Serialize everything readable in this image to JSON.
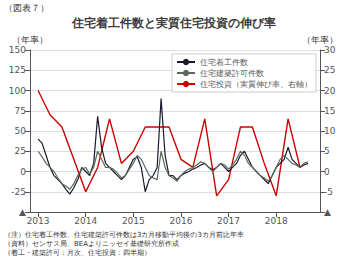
{
  "chart_data": {
    "type": "line",
    "title": "住宅着工件数と実質住宅投資の伸び率",
    "annotations": [
      "（図表７）",
      "（注）住宅着工件数、住宅建築許可件数は3カ月移動平均後の3カ月前比年率",
      "（資料）センサス局、BEAよりニッセイ基礎研究所作成",
      "（着工・建築許可：月次、住宅投資：四半期）"
    ],
    "ylabel": "（年率）",
    "y2label": "（年率）",
    "xlim": [
      2012.83,
      2018.92
    ],
    "xticks": [
      2013,
      2014,
      2015,
      2016,
      2017,
      2018
    ],
    "ylim": [
      -50,
      150
    ],
    "yticks": [
      {
        "value": -50,
        "label": "▲"
      },
      -25,
      0,
      25,
      50,
      75,
      100,
      125,
      150
    ],
    "y2lim": [
      -10,
      30
    ],
    "y2ticks": [
      {
        "value": -10,
        "label": "▲"
      },
      -5,
      0,
      5,
      10,
      15,
      20,
      25,
      30
    ],
    "grid": true,
    "legend": "upper right",
    "x": [
      2013.0,
      2013.083,
      2013.167,
      2013.25,
      2013.333,
      2013.417,
      2013.5,
      2013.583,
      2013.667,
      2013.75,
      2013.833,
      2013.917,
      2014.0,
      2014.083,
      2014.167,
      2014.25,
      2014.333,
      2014.417,
      2014.5,
      2014.583,
      2014.667,
      2014.75,
      2014.833,
      2014.917,
      2015.0,
      2015.083,
      2015.167,
      2015.25,
      2015.333,
      2015.417,
      2015.5,
      2015.583,
      2015.667,
      2015.75,
      2015.833,
      2015.917,
      2016.0,
      2016.083,
      2016.167,
      2016.25,
      2016.333,
      2016.417,
      2016.5,
      2016.583,
      2016.667,
      2016.75,
      2016.833,
      2016.917,
      2017.0,
      2017.083,
      2017.167,
      2017.25,
      2017.333,
      2017.417,
      2017.5,
      2017.583,
      2017.667,
      2017.75,
      2017.833,
      2017.917,
      2018.0,
      2018.083,
      2018.167,
      2018.25,
      2018.333,
      2018.417,
      2018.5,
      2018.583,
      2018.667
    ],
    "series": [
      {
        "name": "住宅着工件数",
        "color": "#1a1a2e",
        "values": [
          40,
          35,
          20,
          5,
          -5,
          -10,
          -15,
          -22,
          -28,
          -20,
          -10,
          5,
          0,
          -5,
          10,
          68,
          30,
          10,
          5,
          0,
          -5,
          -10,
          -5,
          5,
          15,
          18,
          5,
          -25,
          -10,
          -5,
          5,
          90,
          20,
          -5,
          -5,
          -10,
          -5,
          -2,
          0,
          3,
          5,
          8,
          10,
          5,
          2,
          5,
          10,
          5,
          0,
          5,
          10,
          20,
          25,
          15,
          5,
          0,
          -5,
          -10,
          -15,
          -5,
          5,
          10,
          15,
          30,
          15,
          10,
          5,
          8,
          10
        ]
      },
      {
        "name": "住宅建築許可件数",
        "color": "#5a6a5a",
        "values": [
          25,
          18,
          10,
          5,
          0,
          -8,
          -15,
          -18,
          -22,
          -15,
          -5,
          3,
          5,
          -3,
          5,
          25,
          15,
          5,
          5,
          3,
          -2,
          -8,
          -5,
          3,
          10,
          20,
          15,
          5,
          -5,
          -8,
          -10,
          25,
          5,
          -5,
          -8,
          -12,
          -5,
          0,
          3,
          5,
          8,
          12,
          10,
          5,
          0,
          5,
          10,
          8,
          3,
          8,
          15,
          25,
          20,
          10,
          5,
          0,
          -5,
          -8,
          -12,
          -5,
          5,
          15,
          20,
          15,
          10,
          8,
          5,
          10,
          12
        ]
      },
      {
        "name": "住宅投資（実質伸び率、右軸）",
        "color": "#cc0000",
        "axis": "y2",
        "x": [
          2013.0,
          2013.25,
          2013.5,
          2013.75,
          2014.0,
          2014.25,
          2014.5,
          2014.75,
          2015.0,
          2015.25,
          2015.5,
          2015.75,
          2016.0,
          2016.25,
          2016.5,
          2016.75,
          2017.0,
          2017.25,
          2017.5,
          2017.75,
          2018.0,
          2018.25,
          2018.5
        ],
        "values": [
          20,
          14,
          11,
          3,
          -5,
          1,
          13,
          2,
          5,
          11,
          11,
          11,
          3,
          1,
          13,
          -6,
          -2,
          11,
          11,
          2,
          -6,
          13,
          1
        ]
      }
    ]
  }
}
